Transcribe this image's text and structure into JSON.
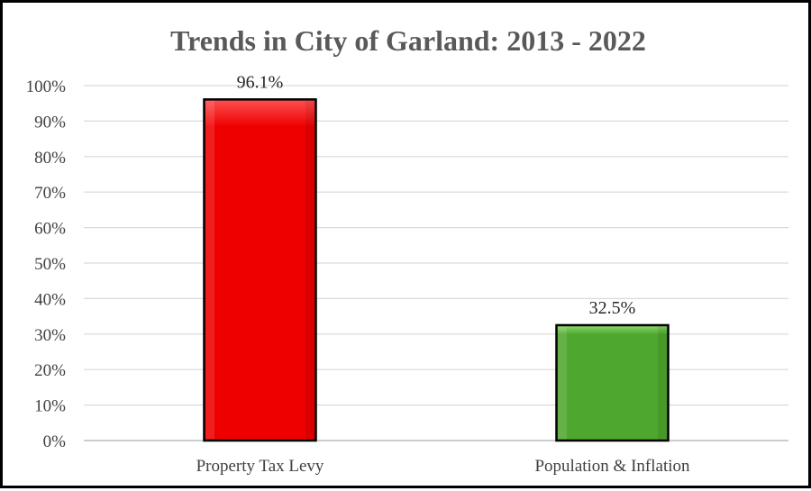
{
  "chart_data": {
    "type": "bar",
    "title": "Trends in City of Garland: 2013 - 2022",
    "categories": [
      "Property Tax Levy",
      "Population & Inflation"
    ],
    "values": [
      96.1,
      32.5
    ],
    "data_labels": [
      "96.1%",
      "32.5%"
    ],
    "ylim": [
      0,
      100
    ],
    "y_ticks": [
      0,
      10,
      20,
      30,
      40,
      50,
      60,
      70,
      80,
      90,
      100
    ],
    "y_tick_labels": [
      "0%",
      "10%",
      "20%",
      "30%",
      "40%",
      "50%",
      "60%",
      "70%",
      "80%",
      "90%",
      "100%"
    ],
    "grid": true,
    "legend": "none",
    "bar_colors": [
      "#ee0000",
      "#4ea72e"
    ],
    "bar_highlight_colors": [
      "#ff5050",
      "#8fdc6a"
    ]
  }
}
